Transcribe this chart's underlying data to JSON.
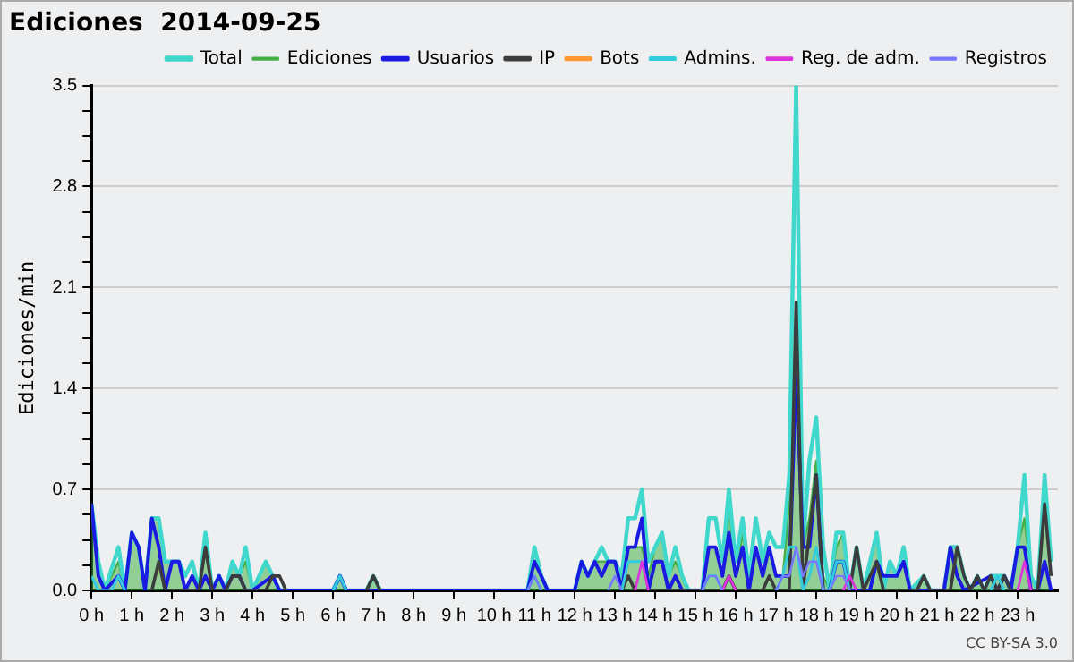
{
  "chart_data": {
    "type": "line",
    "title": "Ediciones  2014-09-25",
    "ylabel": "Ediciones/min",
    "annotations": [
      "CC BY-SA 3.0"
    ],
    "xlim": [
      0,
      24
    ],
    "xticks": [
      {
        "value": 0,
        "label": "0 h"
      },
      {
        "value": 1,
        "label": "1 h"
      },
      {
        "value": 2,
        "label": "2 h"
      },
      {
        "value": 3,
        "label": "3 h"
      },
      {
        "value": 4,
        "label": "4 h"
      },
      {
        "value": 5,
        "label": "5 h"
      },
      {
        "value": 6,
        "label": "6 h"
      },
      {
        "value": 7,
        "label": "7 h"
      },
      {
        "value": 8,
        "label": "8 h"
      },
      {
        "value": 9,
        "label": "9 h"
      },
      {
        "value": 10,
        "label": "10 h"
      },
      {
        "value": 11,
        "label": "11 h"
      },
      {
        "value": 12,
        "label": "12 h"
      },
      {
        "value": 13,
        "label": "13 h"
      },
      {
        "value": 14,
        "label": "14 h"
      },
      {
        "value": 15,
        "label": "15 h"
      },
      {
        "value": 16,
        "label": "16 h"
      },
      {
        "value": 17,
        "label": "17 h"
      },
      {
        "value": 18,
        "label": "18 h"
      },
      {
        "value": 19,
        "label": "19 h"
      },
      {
        "value": 20,
        "label": "20 h"
      },
      {
        "value": 21,
        "label": "21 h"
      },
      {
        "value": 22,
        "label": "22 h"
      },
      {
        "value": 23,
        "label": "23 h"
      }
    ],
    "ylim": [
      0,
      3.5
    ],
    "yticks": [
      {
        "value": 0,
        "label": "0.0"
      },
      {
        "value": 0.175,
        "label": null
      },
      {
        "value": 0.35,
        "label": null
      },
      {
        "value": 0.525,
        "label": null
      },
      0.7,
      {
        "value": 0.875,
        "label": null
      },
      {
        "value": 1.05,
        "label": null
      },
      {
        "value": 1.225,
        "label": null
      },
      1.4,
      {
        "value": 1.575,
        "label": null
      },
      {
        "value": 1.75,
        "label": null
      },
      {
        "value": 1.925,
        "label": null
      },
      2.1,
      {
        "value": 2.275,
        "label": null
      },
      {
        "value": 2.45,
        "label": null
      },
      {
        "value": 2.625,
        "label": null
      },
      2.8,
      {
        "value": 2.975,
        "label": null
      },
      {
        "value": 3.15,
        "label": null
      },
      {
        "value": 3.325,
        "label": null
      },
      3.5
    ],
    "grid": "y",
    "legend": "top right",
    "marker": "none",
    "line_style": "solid",
    "series": [
      {
        "name": "Total",
        "type": "line",
        "color": "#40d8cc",
        "x": [
          0,
          0.17,
          0.33,
          0.67,
          0.83,
          1,
          1.17,
          1.33,
          1.5,
          1.67,
          1.83,
          2,
          2.17,
          2.33,
          2.5,
          2.67,
          2.83,
          3,
          3.17,
          3.33,
          3.5,
          3.67,
          3.83,
          4,
          4.33,
          4.5,
          4.67,
          5,
          6,
          6.17,
          6.33,
          6.83,
          7,
          7.17,
          10.83,
          11,
          11.17,
          11.33,
          12,
          12.17,
          12.33,
          12.5,
          12.67,
          12.83,
          13,
          13.17,
          13.33,
          13.5,
          13.67,
          13.83,
          14,
          14.17,
          14.33,
          14.5,
          14.67,
          14.83,
          15.17,
          15.33,
          15.5,
          15.67,
          15.83,
          16,
          16.17,
          16.33,
          16.5,
          16.67,
          16.83,
          17,
          17.17,
          17.33,
          17.5,
          17.67,
          17.83,
          18,
          18.17,
          18.33,
          18.5,
          18.67,
          18.83,
          19,
          19.17,
          19.5,
          19.67,
          19.83,
          20,
          20.17,
          20.33,
          20.67,
          20.83,
          21.17,
          21.33,
          21.5,
          21.67,
          21.83,
          22,
          22.17,
          22.33,
          22.5,
          22.67,
          22.83,
          23,
          23.17,
          23.33,
          23.5,
          23.67,
          23.83
        ],
        "values": [
          0.6,
          0.2,
          0,
          0.3,
          0,
          0.4,
          0.3,
          0,
          0.5,
          0.5,
          0.2,
          0.2,
          0.2,
          0.1,
          0.2,
          0,
          0.4,
          0,
          0.1,
          0,
          0.2,
          0.1,
          0.3,
          0,
          0.2,
          0.1,
          0,
          0,
          0,
          0.1,
          0,
          0,
          0.1,
          0,
          0,
          0.3,
          0.1,
          0,
          0,
          0.2,
          0.1,
          0.2,
          0.3,
          0.2,
          0.2,
          0.1,
          0.5,
          0.5,
          0.7,
          0.2,
          0.3,
          0.4,
          0.1,
          0.3,
          0.1,
          0,
          0,
          0.5,
          0.5,
          0.2,
          0.7,
          0.2,
          0.5,
          0.1,
          0.5,
          0.2,
          0.4,
          0.3,
          0.3,
          0.8,
          3.5,
          0.3,
          0.9,
          1.2,
          0.3,
          0,
          0.4,
          0.4,
          0,
          0.3,
          0,
          0.4,
          0,
          0.2,
          0.1,
          0.3,
          0,
          0.1,
          0,
          0,
          0.3,
          0.3,
          0.1,
          0,
          0.1,
          0,
          0.1,
          0.1,
          0.1,
          0,
          0.3,
          0.8,
          0.1,
          0,
          0.8,
          0.2
        ]
      },
      {
        "name": "Ediciones",
        "type": "area",
        "color": "#44b044",
        "x": [
          0,
          0.17,
          0.33,
          0.67,
          0.83,
          1,
          1.17,
          1.33,
          1.5,
          1.67,
          1.83,
          2,
          2.17,
          2.33,
          2.5,
          2.67,
          2.83,
          3,
          3.17,
          3.33,
          3.5,
          3.67,
          3.83,
          4,
          4.33,
          4.5,
          4.67,
          5,
          6,
          6.17,
          6.33,
          6.83,
          7,
          7.17,
          10.83,
          11,
          11.17,
          11.33,
          12,
          12.17,
          12.33,
          12.5,
          12.67,
          12.83,
          13,
          13.17,
          13.33,
          13.5,
          13.67,
          13.83,
          14,
          14.17,
          14.33,
          14.5,
          14.67,
          14.83,
          15.17,
          15.33,
          15.5,
          15.67,
          15.83,
          16,
          16.17,
          16.33,
          16.5,
          16.67,
          16.83,
          17,
          17.17,
          17.33,
          17.5,
          17.67,
          17.83,
          18,
          18.17,
          18.33,
          18.5,
          18.67,
          18.83,
          19,
          19.17,
          19.5,
          19.67,
          19.83,
          20,
          20.17,
          20.33,
          20.67,
          20.83,
          21.17,
          21.33,
          21.5,
          21.67,
          21.83,
          22,
          22.17,
          22.33,
          22.5,
          22.67,
          22.83,
          23,
          23.17,
          23.33,
          23.5,
          23.67,
          23.83
        ],
        "values": [
          0.6,
          0.1,
          0,
          0.2,
          0,
          0.4,
          0.3,
          0,
          0.5,
          0.5,
          0.2,
          0.2,
          0.2,
          0,
          0.1,
          0,
          0.3,
          0,
          0.1,
          0,
          0.2,
          0.1,
          0.2,
          0,
          0.2,
          0.1,
          0,
          0,
          0,
          0.1,
          0,
          0,
          0.1,
          0,
          0,
          0.2,
          0.1,
          0,
          0,
          0.2,
          0.1,
          0.2,
          0.2,
          0.2,
          0.2,
          0.1,
          0.3,
          0.3,
          0.3,
          0.1,
          0.3,
          0.4,
          0.1,
          0.2,
          0.1,
          0,
          0,
          0.3,
          0.3,
          0.1,
          0.6,
          0.1,
          0.4,
          0.1,
          0.3,
          0.1,
          0.3,
          0.1,
          0.1,
          0.6,
          2.0,
          0.3,
          0.5,
          0.9,
          0.1,
          0,
          0.3,
          0.4,
          0,
          0.3,
          0,
          0.4,
          0,
          0.2,
          0.1,
          0.2,
          0,
          0.1,
          0,
          0,
          0.3,
          0.3,
          0.1,
          0,
          0.1,
          0,
          0.1,
          0.1,
          0.1,
          0,
          0.3,
          0.5,
          0.1,
          0,
          0.8,
          0.2
        ]
      },
      {
        "name": "Usuarios",
        "type": "line",
        "color": "#1a1ae0",
        "x": [
          0,
          0.17,
          0.33,
          0.67,
          0.83,
          1,
          1.17,
          1.33,
          1.5,
          1.67,
          1.83,
          2,
          2.17,
          2.33,
          2.5,
          2.67,
          2.83,
          3,
          3.17,
          3.33,
          3.5,
          3.67,
          3.83,
          4,
          4.5,
          4.67,
          6,
          6.17,
          6.33,
          10.83,
          11,
          11.17,
          11.33,
          12,
          12.17,
          12.33,
          12.5,
          12.67,
          12.83,
          13,
          13.17,
          13.33,
          13.5,
          13.67,
          13.83,
          14,
          14.17,
          14.33,
          14.5,
          14.67,
          15.17,
          15.33,
          15.5,
          15.67,
          15.83,
          16,
          16.17,
          16.33,
          16.5,
          16.67,
          16.83,
          17,
          17.17,
          17.33,
          17.5,
          17.67,
          17.83,
          18,
          18.17,
          18.33,
          18.5,
          18.67,
          18.83,
          19.33,
          19.5,
          19.67,
          19.83,
          20,
          20.17,
          20.33,
          21.17,
          21.33,
          21.5,
          21.67,
          22.33,
          22.5,
          22.67,
          22.83,
          23,
          23.17,
          23.33,
          23.5,
          23.67,
          23.83
        ],
        "values": [
          0.6,
          0.1,
          0,
          0.1,
          0,
          0.4,
          0.3,
          0,
          0.5,
          0.3,
          0,
          0.2,
          0.2,
          0,
          0.1,
          0,
          0.1,
          0,
          0.1,
          0,
          0.1,
          0.1,
          0,
          0,
          0.1,
          0,
          0,
          0.1,
          0,
          0,
          0.2,
          0.1,
          0,
          0,
          0.2,
          0.1,
          0.2,
          0.1,
          0.2,
          0.2,
          0,
          0.3,
          0.3,
          0.5,
          0,
          0.2,
          0.2,
          0,
          0.1,
          0,
          0,
          0.3,
          0.3,
          0.1,
          0.4,
          0.1,
          0.3,
          0,
          0.3,
          0.1,
          0.3,
          0.1,
          0.1,
          0.1,
          1.5,
          0.3,
          0.3,
          0.8,
          0,
          0,
          0.2,
          0.2,
          0,
          0,
          0.2,
          0.1,
          0.1,
          0.1,
          0.2,
          0,
          0,
          0.3,
          0.1,
          0,
          0.1,
          0,
          0.1,
          0,
          0.3,
          0.3,
          0,
          0,
          0.2,
          0
        ]
      },
      {
        "name": "IP",
        "type": "line",
        "color": "#3c3c3c",
        "x": [
          1.5,
          1.67,
          1.83,
          2.67,
          2.83,
          3,
          3.33,
          3.5,
          3.67,
          3.83,
          4.33,
          4.5,
          4.67,
          4.83,
          6,
          6.83,
          7,
          7.17,
          10,
          13.17,
          13.33,
          13.5,
          15.67,
          15.83,
          16,
          16.67,
          16.83,
          17,
          17.33,
          17.5,
          17.67,
          17.83,
          18,
          18.17,
          18.83,
          19,
          19.17,
          19.5,
          19.67,
          20.5,
          20.67,
          20.83,
          21.33,
          21.5,
          21.67,
          21.83,
          22,
          22.17,
          22.33,
          22.5,
          22.67,
          22.83,
          23.5,
          23.67,
          23.83
        ],
        "values": [
          0,
          0.2,
          0,
          0,
          0.3,
          0,
          0,
          0.1,
          0.1,
          0,
          0,
          0.1,
          0.1,
          0,
          null,
          0,
          0.1,
          0,
          null,
          0,
          0.1,
          0,
          0,
          0.1,
          0,
          0,
          0.1,
          0,
          0,
          2.0,
          0,
          0.4,
          0.8,
          0,
          0,
          0.3,
          0,
          0.2,
          0,
          0,
          0.1,
          0,
          0,
          0.3,
          0.1,
          0,
          0.1,
          0,
          0.1,
          0,
          0.1,
          0,
          0,
          0.6,
          0.1
        ]
      },
      {
        "name": "Bots",
        "type": "line",
        "color": "#ff9933"
      },
      {
        "name": "Admins.",
        "type": "line",
        "color": "#33ccdd",
        "x": [
          0,
          0.17,
          0.5,
          0.67,
          0.83,
          3,
          6,
          6.17,
          6.33,
          8,
          10.83,
          11,
          11.17,
          12,
          13.17,
          13.33,
          13.5,
          13.67,
          13.83,
          14.5,
          15.17,
          15.33,
          15.5,
          15.67,
          16.5,
          17,
          17.17,
          17.33,
          17.5,
          17.67,
          17.83,
          18,
          18.17,
          18.33,
          18.5,
          18.67,
          18.83,
          20,
          22.33,
          22.5,
          22.67
        ],
        "values": [
          0.1,
          0,
          0,
          0.1,
          0,
          null,
          0,
          0.1,
          0,
          null,
          0,
          0.1,
          0,
          null,
          0,
          0.2,
          0.2,
          0.2,
          null,
          null,
          0,
          0.1,
          0.1,
          0,
          null,
          0,
          0.1,
          0.3,
          0.3,
          0,
          0.1,
          0.3,
          0,
          0,
          0.2,
          0.2,
          0,
          null,
          0,
          0.1,
          0
        ]
      },
      {
        "name": "Reg. de adm.",
        "type": "line",
        "color": "#dd33dd",
        "x": [
          13.5,
          13.67,
          13.83,
          14.5,
          15.67,
          15.83,
          16,
          17,
          18.67,
          18.83,
          19,
          21,
          23,
          23.17,
          23.33
        ],
        "values": [
          0,
          0.2,
          0,
          null,
          0,
          0.1,
          0,
          null,
          0,
          0.1,
          0,
          null,
          0,
          0.2,
          0
        ]
      },
      {
        "name": "Registros",
        "type": "line",
        "color": "#7777ff",
        "x": [
          10.83,
          11,
          11.17,
          12,
          12.83,
          13,
          13.17,
          14,
          15.17,
          15.33,
          15.5,
          15.67,
          16.5,
          17,
          17.17,
          17.33,
          17.5,
          17.67,
          17.83,
          18,
          18.17,
          18.33,
          18.5,
          18.67,
          18.83
        ],
        "values": [
          0,
          0.1,
          0,
          null,
          0,
          0.1,
          0,
          null,
          0,
          0.1,
          0.1,
          0,
          null,
          0,
          0.1,
          0.1,
          0.3,
          0.1,
          0.2,
          0.2,
          0,
          0,
          0.1,
          0.1,
          0
        ]
      }
    ]
  }
}
